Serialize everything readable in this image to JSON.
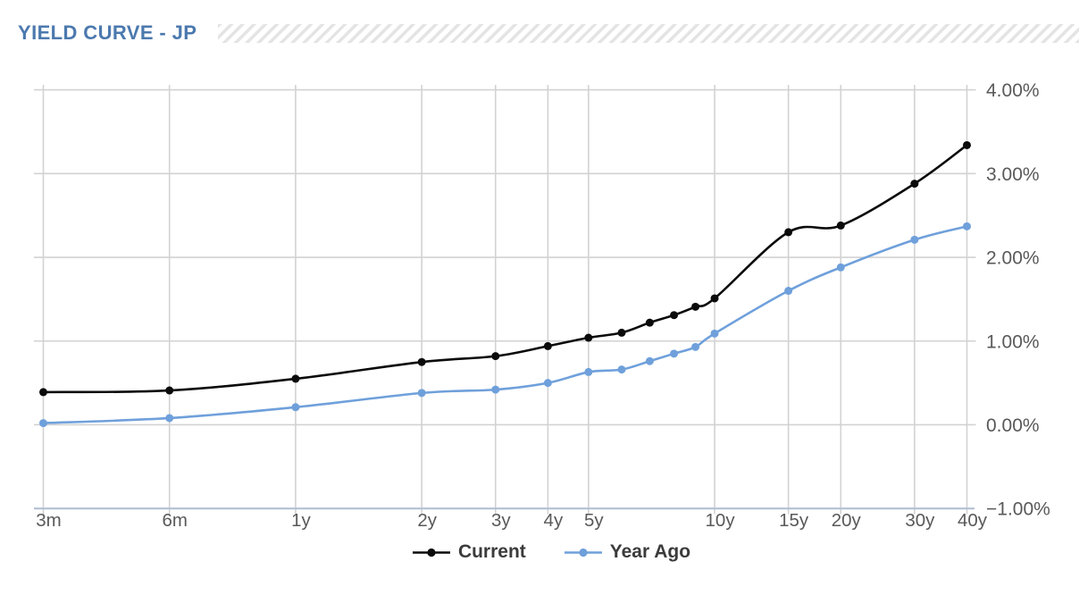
{
  "title": "YIELD CURVE - JP",
  "legend": [
    {
      "label": "Current",
      "color": "#0b0b0b"
    },
    {
      "label": "Year Ago",
      "color": "#6fa0db"
    }
  ],
  "chart_data": {
    "type": "line",
    "title": "YIELD CURVE - JP",
    "x_scale": "log",
    "categories": [
      "3m",
      "6m",
      "1y",
      "2y",
      "3y",
      "4y",
      "5y",
      "6y",
      "7y",
      "8y",
      "9y",
      "10y",
      "15y",
      "20y",
      "30y",
      "40y"
    ],
    "x_years": [
      0.25,
      0.5,
      1,
      2,
      3,
      4,
      5,
      6,
      7,
      8,
      9,
      10,
      15,
      20,
      30,
      40
    ],
    "series": [
      {
        "name": "Current",
        "color": "#0b0b0b",
        "values": [
          0.39,
          0.41,
          0.55,
          0.75,
          0.82,
          0.94,
          1.04,
          1.1,
          1.22,
          1.31,
          1.41,
          1.51,
          2.3,
          2.38,
          2.88,
          3.34
        ]
      },
      {
        "name": "Year Ago",
        "color": "#6fa0db",
        "values": [
          0.02,
          0.08,
          0.21,
          0.38,
          0.42,
          0.5,
          0.63,
          0.66,
          0.76,
          0.85,
          0.93,
          1.09,
          1.6,
          1.88,
          2.21,
          2.37
        ]
      }
    ],
    "x_tick_labels": [
      "3m",
      "6m",
      "1y",
      "2y",
      "3y",
      "4y",
      "5y",
      "10y",
      "15y",
      "20y",
      "30y",
      "40y"
    ],
    "x_tick_years": [
      0.25,
      0.5,
      1,
      2,
      3,
      4,
      5,
      10,
      15,
      20,
      30,
      40
    ],
    "y_tick_labels": [
      "4.00%",
      "3.00%",
      "2.00%",
      "1.00%",
      "0.00%",
      "−1.00%"
    ],
    "y_tick_values": [
      4,
      3,
      2,
      1,
      0,
      -1
    ],
    "ylim": [
      -1,
      4
    ],
    "xlim_years": [
      0.25,
      40
    ],
    "grid": true,
    "legend_position": "bottom",
    "smooth_lines": true
  },
  "colors": {
    "title": "#4b79ae",
    "gridline": "#d2d2d2",
    "axis_line": "#b3c0d3",
    "tick_label": "#595959",
    "legend_text": "#3b3b3b",
    "hatch": "#e4e4e4"
  }
}
